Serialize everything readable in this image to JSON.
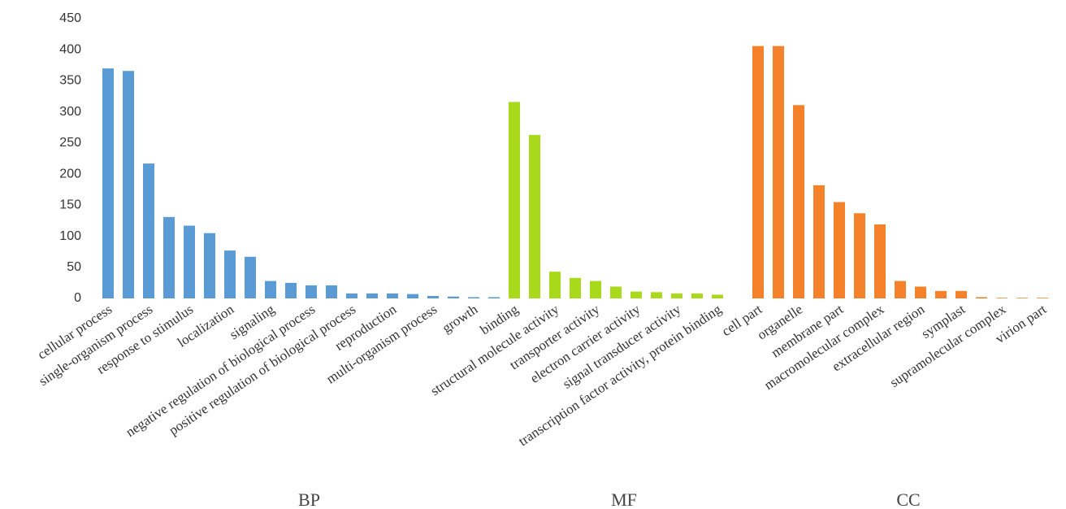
{
  "chart_data": {
    "type": "bar",
    "categories": [
      "cellular process",
      null,
      "single-organism process",
      null,
      "response to stimulus",
      null,
      "localization",
      null,
      "signaling",
      null,
      "negative regulation of biological process",
      null,
      "positive regulation of biological process",
      null,
      "reproduction",
      null,
      "multi-organism process",
      null,
      "growth",
      null,
      "binding",
      null,
      "structural molecule activity",
      null,
      "transporter activity",
      null,
      "electron carrier activity",
      null,
      "signal transducer activity",
      null,
      "transcription factor activity, protein binding",
      null,
      "cell part",
      null,
      "organelle",
      null,
      "membrane part",
      null,
      "macromolecular complex",
      null,
      "extracellular region",
      null,
      "symplast",
      null,
      "supramolecular complex",
      null,
      "virion part"
    ],
    "series": [
      {
        "name": "BP",
        "color": "#5b9bd5",
        "values": [
          370,
          366,
          217,
          131,
          117,
          105,
          77,
          67,
          28,
          25,
          21,
          21,
          8,
          8,
          8,
          7,
          4,
          3,
          2,
          2,
          null,
          null,
          null,
          null,
          null,
          null,
          null,
          null,
          null,
          null,
          null,
          null,
          null,
          null,
          null,
          null,
          null,
          null,
          null,
          null,
          null,
          null,
          null,
          null,
          null,
          null,
          null
        ]
      },
      {
        "name": "MF",
        "color": "#a8d91a",
        "values": [
          null,
          null,
          null,
          null,
          null,
          null,
          null,
          null,
          null,
          null,
          null,
          null,
          null,
          null,
          null,
          null,
          null,
          null,
          null,
          null,
          316,
          263,
          43,
          33,
          28,
          19,
          11,
          10,
          8,
          8,
          6,
          null,
          null,
          null,
          null,
          null,
          null,
          null,
          null,
          null,
          null,
          null,
          null,
          null,
          null,
          null,
          null
        ]
      },
      {
        "name": "CC",
        "color": "#f5822a",
        "values": [
          null,
          null,
          null,
          null,
          null,
          null,
          null,
          null,
          null,
          null,
          null,
          null,
          null,
          null,
          null,
          null,
          null,
          null,
          null,
          null,
          null,
          null,
          null,
          null,
          null,
          null,
          null,
          null,
          null,
          null,
          null,
          null,
          406,
          406,
          311,
          182,
          155,
          137,
          119,
          28,
          19,
          12,
          12,
          2,
          1,
          1,
          1
        ]
      }
    ],
    "ylim": [
      0,
      450
    ],
    "yticks": [
      0,
      50,
      100,
      150,
      200,
      250,
      300,
      350,
      400,
      450
    ],
    "grid": false
  }
}
